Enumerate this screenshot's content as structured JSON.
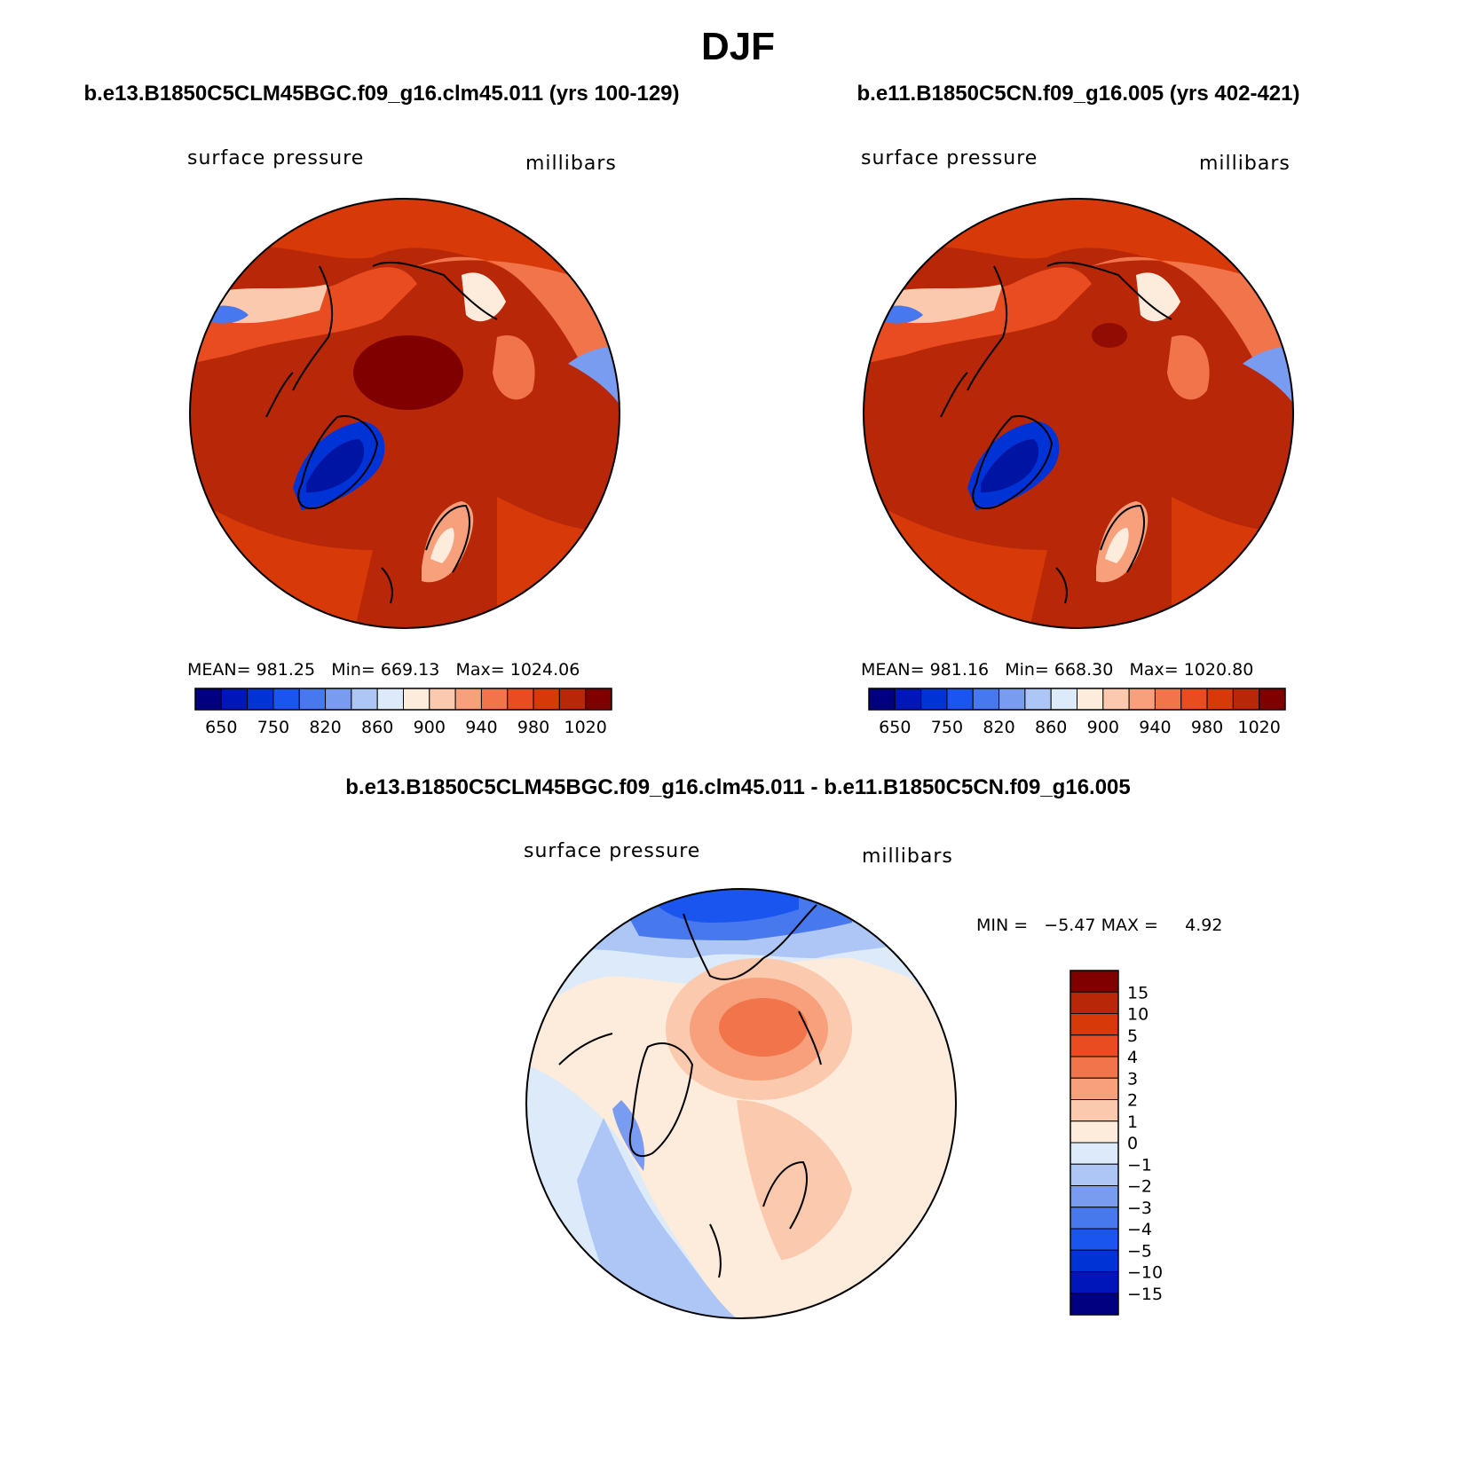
{
  "figure": {
    "title": "DJF"
  },
  "panels": [
    {
      "case_title": "b.e13.B1850C5CLM45BGC.f09_g16.clm45.011 (yrs 100-129)",
      "variable_label": "surface pressure",
      "units_label": "millibars",
      "stats": {
        "mean_label": "MEAN=",
        "mean": "981.25",
        "min_label": "Min=",
        "min": "669.13",
        "max_label": "Max=",
        "max": "1024.06"
      }
    },
    {
      "case_title": "b.e11.B1850C5CN.f09_g16.005 (yrs 402-421)",
      "variable_label": "surface pressure",
      "units_label": "millibars",
      "stats": {
        "mean_label": "MEAN=",
        "mean": "981.16",
        "min_label": "Min=",
        "min": "668.30",
        "max_label": "Max=",
        "max": "1020.80"
      }
    }
  ],
  "diff_panel": {
    "case_title": "b.e13.B1850C5CLM45BGC.f09_g16.clm45.011 - b.e11.B1850C5CN.f09_g16.005",
    "variable_label": "surface pressure",
    "units_label": "millibars",
    "stats": {
      "min_label": "MIN =",
      "min": "−5.47",
      "max_label": "MAX =",
      "max": "4.92"
    }
  },
  "abs_colorbar": {
    "colors": [
      "#000080",
      "#0016b8",
      "#0033d6",
      "#1a55f0",
      "#4878ee",
      "#7a9cf0",
      "#adc6f5",
      "#dceafa",
      "#fdebdb",
      "#fbc9ad",
      "#f7a07b",
      "#f1744b",
      "#e84c20",
      "#d73a08",
      "#b82808",
      "#800000"
    ],
    "tick_labels": [
      "650",
      "750",
      "820",
      "860",
      "900",
      "940",
      "980",
      "1020"
    ]
  },
  "diff_colorbar": {
    "colors_top_to_bottom": [
      "#800000",
      "#b82808",
      "#d73a08",
      "#e84c20",
      "#f1744b",
      "#f7a07b",
      "#fbc9ad",
      "#fdebdb",
      "#dceafa",
      "#adc6f5",
      "#7a9cf0",
      "#4878ee",
      "#1a55f0",
      "#0033d6",
      "#0016b8",
      "#000080"
    ],
    "tick_labels": [
      "15",
      "10",
      "5",
      "4",
      "3",
      "2",
      "1",
      "0",
      "−1",
      "−2",
      "−3",
      "−4",
      "−5",
      "−10",
      "−15"
    ]
  }
}
